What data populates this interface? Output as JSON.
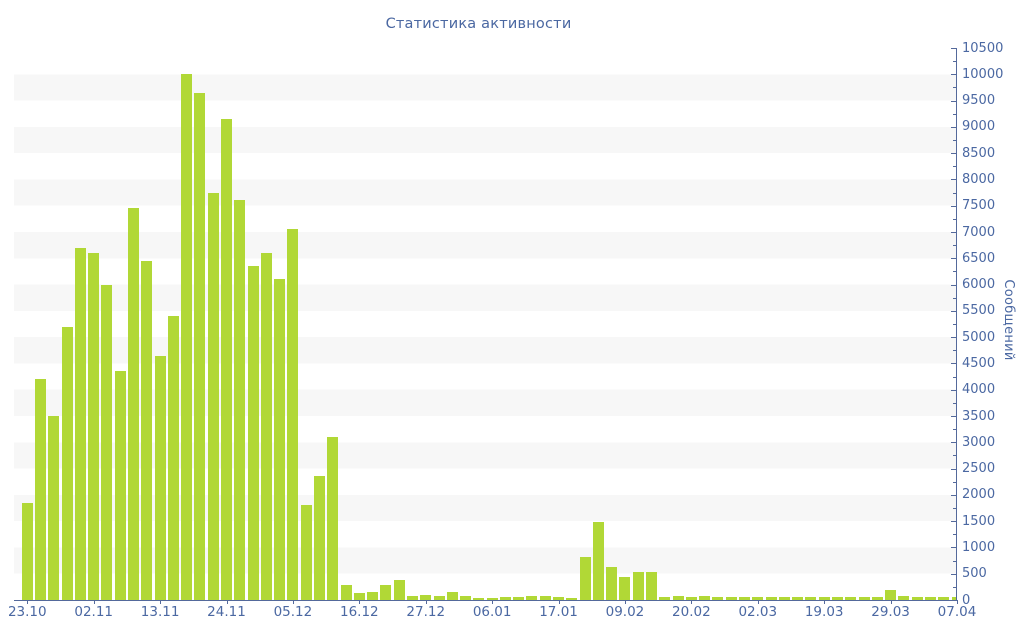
{
  "chart_data": {
    "type": "bar",
    "title": "Статистика активности",
    "ylabel": "Сообщений",
    "xlabel": "",
    "legend": "none",
    "ylim": [
      0,
      10500
    ],
    "ytick_step": 500,
    "yminor_step": 250,
    "grid": "alternating horizontal bands of 500 units",
    "bar_color": "#b1d836",
    "text_color": "#4b68a2",
    "axis_color": "#54699b",
    "band_color": "#f7f7f7",
    "background_color": "#ffffff",
    "x_tick_labels": [
      "23.10",
      "02.11",
      "13.11",
      "24.11",
      "05.12",
      "16.12",
      "27.12",
      "06.01",
      "17.01",
      "09.02",
      "20.02",
      "02.03",
      "19.03",
      "29.03",
      "07.04"
    ],
    "x_label_every_n_bars": 5,
    "values": [
      1850,
      4200,
      3500,
      5200,
      6700,
      6600,
      6000,
      4350,
      7450,
      6450,
      4650,
      5400,
      10000,
      9650,
      7750,
      9150,
      7600,
      6350,
      6600,
      6100,
      7050,
      1800,
      2350,
      3100,
      290,
      140,
      150,
      290,
      390,
      80,
      95,
      70,
      145,
      75,
      40,
      40,
      55,
      55,
      75,
      75,
      50,
      35,
      820,
      1490,
      620,
      440,
      525,
      525,
      60,
      70,
      60,
      70,
      60,
      60,
      60,
      55,
      60,
      55,
      60,
      60,
      55,
      60,
      60,
      60,
      60,
      190,
      70,
      60,
      60,
      60,
      60
    ]
  }
}
